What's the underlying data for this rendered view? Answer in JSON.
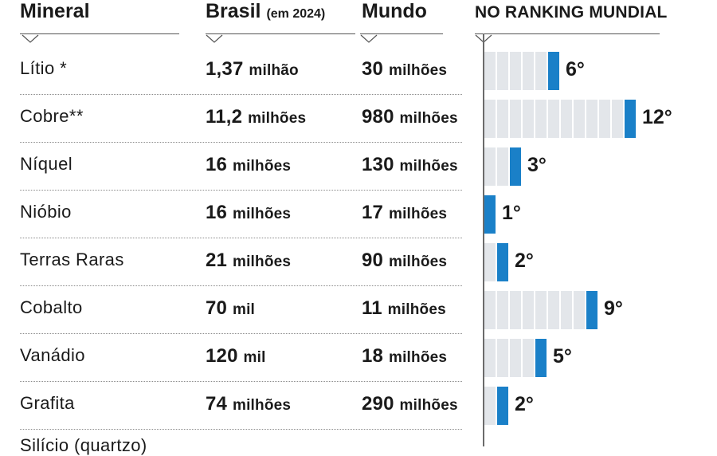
{
  "headers": {
    "mineral": "Mineral",
    "brasil": "Brasil",
    "brasil_note": "(em 2024)",
    "mundo": "Mundo",
    "ranking": "NO RANKING MUNDIAL"
  },
  "colors": {
    "bar": "#1a80c8",
    "segment": "#e3e6ea"
  },
  "chart_data": {
    "type": "table",
    "columns": [
      "Mineral",
      "Brasil (em 2024)",
      "Mundo",
      "NO RANKING MUNDIAL"
    ],
    "rows": [
      {
        "mineral": "Lítio *",
        "brasil_num": "1,37",
        "brasil_unit": "milhão",
        "mundo_num": "30",
        "mundo_unit": "milhões",
        "rank": 6,
        "rank_label": "6°"
      },
      {
        "mineral": "Cobre**",
        "brasil_num": "11,2",
        "brasil_unit": "milhões",
        "mundo_num": "980",
        "mundo_unit": "milhões",
        "rank": 12,
        "rank_label": "12°"
      },
      {
        "mineral": "Níquel",
        "brasil_num": "16",
        "brasil_unit": "milhões",
        "mundo_num": "130",
        "mundo_unit": "milhões",
        "rank": 3,
        "rank_label": "3°"
      },
      {
        "mineral": "Nióbio",
        "brasil_num": "16",
        "brasil_unit": "milhões",
        "mundo_num": "17",
        "mundo_unit": "milhões",
        "rank": 1,
        "rank_label": "1°"
      },
      {
        "mineral": "Terras Raras",
        "brasil_num": "21",
        "brasil_unit": "milhões",
        "mundo_num": "90",
        "mundo_unit": "milhões",
        "rank": 2,
        "rank_label": "2°"
      },
      {
        "mineral": "Cobalto",
        "brasil_num": "70",
        "brasil_unit": "mil",
        "mundo_num": "11",
        "mundo_unit": "milhões",
        "rank": 9,
        "rank_label": "9°"
      },
      {
        "mineral": "Vanádio",
        "brasil_num": "120",
        "brasil_unit": "mil",
        "mundo_num": "18",
        "mundo_unit": "milhões",
        "rank": 5,
        "rank_label": "5°"
      },
      {
        "mineral": "Grafita",
        "brasil_num": "74",
        "brasil_unit": "milhões",
        "mundo_num": "290",
        "mundo_unit": "milhões",
        "rank": 2,
        "rank_label": "2°"
      }
    ],
    "partial_row": "Silício (quartzo)"
  }
}
